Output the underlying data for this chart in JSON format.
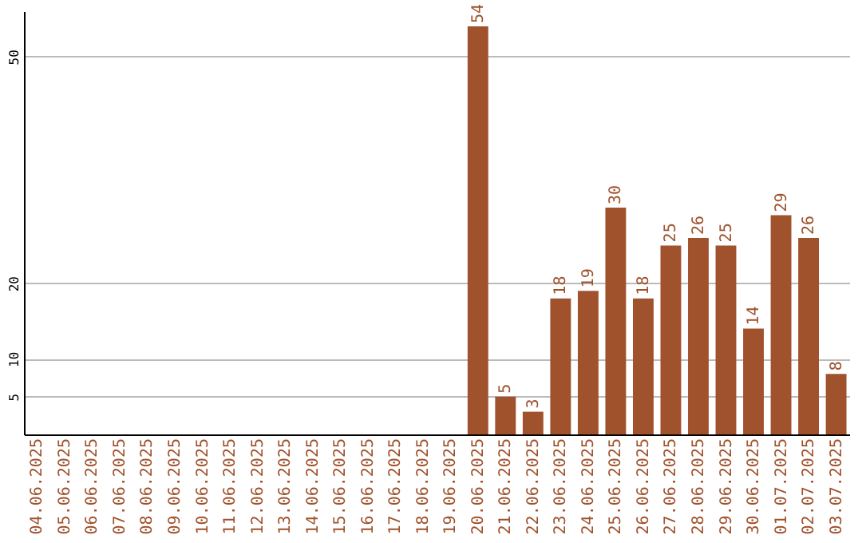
{
  "chart_data": {
    "type": "bar",
    "categories": [
      "04.06.2025",
      "05.06.2025",
      "06.06.2025",
      "07.06.2025",
      "08.06.2025",
      "09.06.2025",
      "10.06.2025",
      "11.06.2025",
      "12.06.2025",
      "13.06.2025",
      "14.06.2025",
      "15.06.2025",
      "16.06.2025",
      "17.06.2025",
      "18.06.2025",
      "19.06.2025",
      "20.06.2025",
      "21.06.2025",
      "22.06.2025",
      "23.06.2025",
      "24.06.2025",
      "25.06.2025",
      "26.06.2025",
      "27.06.2025",
      "28.06.2025",
      "29.06.2025",
      "30.06.2025",
      "01.07.2025",
      "02.07.2025",
      "03.07.2025"
    ],
    "values": [
      0,
      0,
      0,
      0,
      0,
      0,
      0,
      0,
      0,
      0,
      0,
      0,
      0,
      0,
      0,
      0,
      54,
      5,
      3,
      18,
      19,
      30,
      18,
      25,
      26,
      25,
      14,
      29,
      26,
      8
    ],
    "value_labels": [
      null,
      null,
      null,
      null,
      null,
      null,
      null,
      null,
      null,
      null,
      null,
      null,
      null,
      null,
      null,
      null,
      "54",
      "5",
      "3",
      "18",
      "19",
      "30",
      "18",
      "25",
      "26",
      "25",
      "14",
      "29",
      "26",
      "8"
    ],
    "color": "#a0522d",
    "ylim": [
      0,
      56
    ],
    "yticks": [
      5,
      10,
      20,
      50
    ],
    "grid": "y"
  }
}
